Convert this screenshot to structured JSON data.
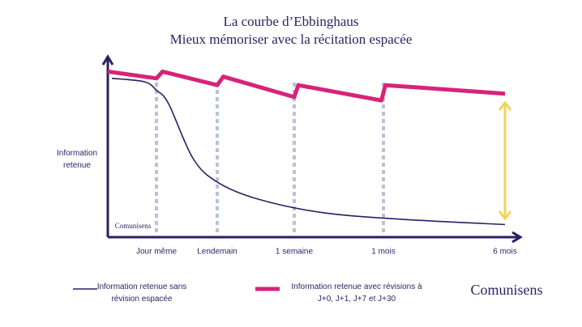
{
  "chart_data": {
    "type": "line",
    "title": "La courbe d’Ebbinghaus",
    "subtitle": "Mieux mémoriser avec la récitation espacée",
    "y_label": "Information retenue",
    "watermark": "Comunisens",
    "xlim": [
      0,
      100
    ],
    "ylim": [
      0,
      100
    ],
    "xticks": [
      {
        "value": 12,
        "label": "Jour même"
      },
      {
        "value": 27,
        "label": "Lendemain"
      },
      {
        "value": 46,
        "label": "1 semaine"
      },
      {
        "value": 68,
        "label": "1 mois"
      },
      {
        "value": 98,
        "label": "6 mois"
      }
    ],
    "series": [
      {
        "name": "Information retenue sans révision espacée",
        "color": "#2b1f63",
        "smooth": true,
        "x": [
          1,
          9,
          12,
          15,
          21,
          27,
          37,
          53,
          73,
          98
        ],
        "values": [
          92,
          90,
          85,
          77,
          45,
          31,
          21,
          13,
          9,
          6
        ]
      },
      {
        "name": "Information retenue avec révisions à J+0, J+1, J+7 et J+30",
        "color": "#d6247a",
        "smooth": false,
        "x": [
          0,
          12,
          13.5,
          27,
          28.5,
          46,
          47,
          67.5,
          68.5,
          98
        ],
        "values": [
          96,
          92,
          96,
          88,
          93,
          81,
          88,
          79,
          88,
          83
        ]
      }
    ]
  }
}
